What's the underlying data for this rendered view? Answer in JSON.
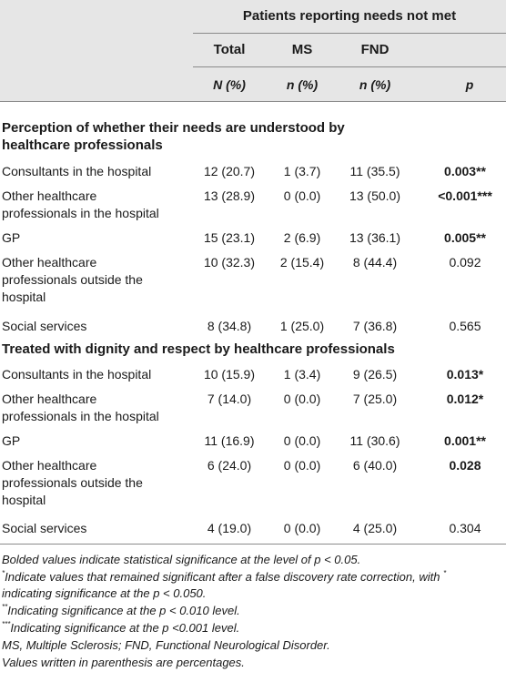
{
  "header": {
    "group_title": "Patients reporting needs not met",
    "col_total": "Total",
    "col_ms": "MS",
    "col_fnd": "FND",
    "sub_total": "N (%)",
    "sub_ms": "n (%)",
    "sub_fnd": "n (%)",
    "sub_p": "p"
  },
  "section1": {
    "title_line1": "Perception of whether their needs are understood by",
    "title_line2": "healthcare professionals",
    "rows": [
      {
        "label1": "Consultants in the hospital",
        "label2": "",
        "label3": "",
        "total": "12 (20.7)",
        "ms": "1 (3.7)",
        "fnd": "11 (35.5)",
        "p": "0.003**"
      },
      {
        "label1": "Other healthcare",
        "label2": "professionals in the hospital",
        "label3": "",
        "total": "13 (28.9)",
        "ms": "0 (0.0)",
        "fnd": "13 (50.0)",
        "p": "<0.001***"
      },
      {
        "label1": "GP",
        "label2": "",
        "label3": "",
        "total": "15 (23.1)",
        "ms": "2 (6.9)",
        "fnd": "13 (36.1)",
        "p": "0.005**"
      },
      {
        "label1": "Other healthcare",
        "label2": "professionals outside the",
        "label3": "hospital",
        "total": "10 (32.3)",
        "ms": "2 (15.4)",
        "fnd": "8 (44.4)",
        "p": "0.092"
      },
      {
        "label1": "Social services",
        "label2": "",
        "label3": "",
        "total": "8 (34.8)",
        "ms": "1 (25.0)",
        "fnd": "7 (36.8)",
        "p": "0.565"
      }
    ]
  },
  "section2": {
    "title_line1": "Treated with dignity and respect by healthcare professionals",
    "rows": [
      {
        "label1": "Consultants in the hospital",
        "label2": "",
        "label3": "",
        "total": "10 (15.9)",
        "ms": "1 (3.4)",
        "fnd": "9 (26.5)",
        "p": "0.013*"
      },
      {
        "label1": "Other healthcare",
        "label2": "professionals in the hospital",
        "label3": "",
        "total": "7 (14.0)",
        "ms": "0 (0.0)",
        "fnd": "7 (25.0)",
        "p": "0.012*"
      },
      {
        "label1": "GP",
        "label2": "",
        "label3": "",
        "total": "11 (16.9)",
        "ms": "0 (0.0)",
        "fnd": "11 (30.6)",
        "p": "0.001**"
      },
      {
        "label1": "Other healthcare",
        "label2": "professionals outside the",
        "label3": "hospital",
        "total": "6 (24.0)",
        "ms": "0 (0.0)",
        "fnd": "6 (40.0)",
        "p": "0.028"
      },
      {
        "label1": "Social services",
        "label2": "",
        "label3": "",
        "total": "4 (19.0)",
        "ms": "0 (0.0)",
        "fnd": "4 (25.0)",
        "p": "0.304"
      }
    ]
  },
  "footnotes": {
    "n1": "Bolded values indicate statistical significance at the level of p < 0.05.",
    "n2_sup": "*",
    "n2": "Indicate values that remained significant after a false discovery rate correction, with",
    "n2_tail_sup": "*",
    "n2b": "indicating significance at the p < 0.050.",
    "n3_sup": "**",
    "n3": "Indicating significance at the p < 0.010 level.",
    "n4_sup": "***",
    "n4": "Indicating significance at the p <0.001 level.",
    "n5": "MS, Multiple Sclerosis; FND, Functional Neurological Disorder.",
    "n6": "Values written in parenthesis are percentages."
  }
}
